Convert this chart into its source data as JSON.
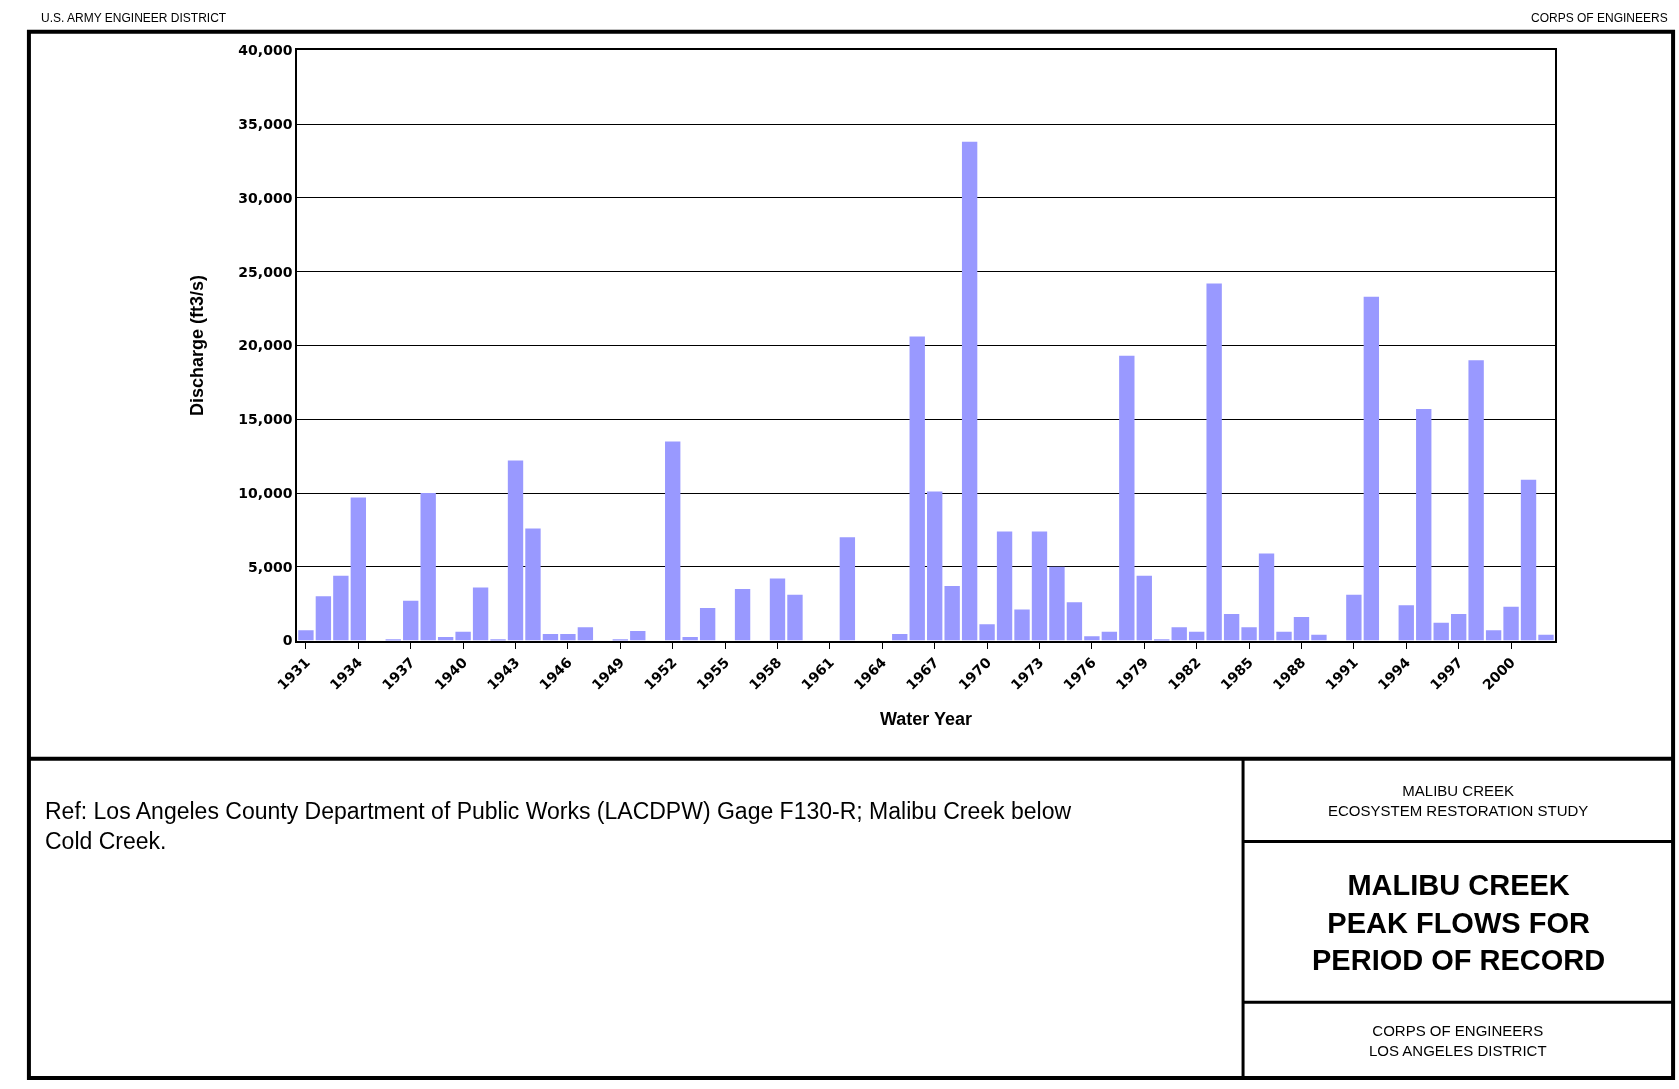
{
  "chart_data": {
    "type": "bar",
    "title": "MALIBU CREEK\nPEAK FLOWS FOR\nPERIOD OF RECORD",
    "subtitle": "MALIBU CREEK\nECOSYSTEM RESTORATION STUDY",
    "xlabel": "Water Year",
    "ylabel": "Discharge (ft3/s)",
    "categories": [
      "1931",
      null,
      null,
      "1934",
      null,
      null,
      "1937",
      null,
      null,
      "1940",
      null,
      null,
      "1943",
      null,
      null,
      "1946",
      null,
      null,
      "1949",
      null,
      null,
      "1952",
      null,
      null,
      "1955",
      null,
      null,
      "1958",
      null,
      null,
      "1961",
      null,
      null,
      "1964",
      null,
      null,
      "1967",
      null,
      null,
      "1970",
      null,
      null,
      "1973",
      null,
      null,
      "1976",
      null,
      null,
      "1979",
      null,
      null,
      "1982",
      null,
      null,
      "1985",
      null,
      null,
      "1988",
      null,
      null,
      "1991",
      null,
      null,
      "1994",
      null,
      null,
      "1997",
      null,
      null,
      "2000",
      null,
      null
    ],
    "values": [
      700,
      3000,
      4400,
      9700,
      0,
      50,
      2700,
      10000,
      250,
      600,
      3600,
      50,
      12200,
      7600,
      450,
      450,
      900,
      0,
      50,
      650,
      0,
      13500,
      250,
      2200,
      0,
      3500,
      0,
      4200,
      3100,
      0,
      0,
      7000,
      0,
      0,
      450,
      20600,
      10100,
      3700,
      33800,
      1100,
      7400,
      2100,
      7400,
      5000,
      2600,
      300,
      600,
      19300,
      4400,
      50,
      900,
      600,
      24200,
      1800,
      900,
      5900,
      600,
      1600,
      400,
      0,
      3100,
      23300,
      0,
      2400,
      15700,
      1200,
      1800,
      19000,
      700,
      2300,
      10900,
      400
    ],
    "color": "#9999ff",
    "ylim": [
      0,
      40000
    ],
    "yticks": [
      {
        "value": 0,
        "label": "0"
      },
      {
        "value": 5000,
        "label": "5,000"
      },
      {
        "value": 10000,
        "label": "10,000"
      },
      {
        "value": 15000,
        "label": "15,000"
      },
      {
        "value": 20000,
        "label": "20,000"
      },
      {
        "value": 25000,
        "label": "25,000"
      },
      {
        "value": 30000,
        "label": "30,000"
      },
      {
        "value": 35000,
        "label": "35,000"
      },
      {
        "value": 40000,
        "label": "40,000"
      }
    ],
    "grid": "y",
    "annotations": [
      "U.S. ARMY ENGINEER DISTRICT",
      "CORPS OF ENGINEERS",
      "Ref: Los Angeles County Department of Public Works (LACDPW) Gage F130-R; Malibu Creek below Cold Creek.",
      "CORPS OF ENGINEERS\nLOS ANGELES DISTRICT"
    ]
  }
}
